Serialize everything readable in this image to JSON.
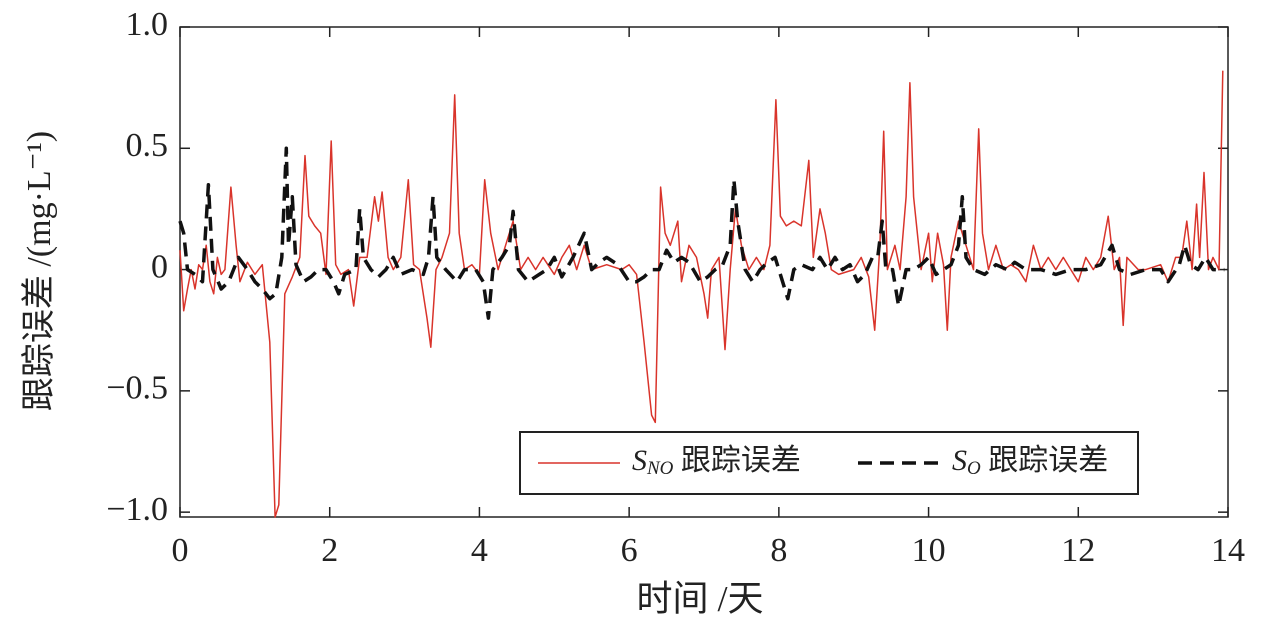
{
  "chart_data": {
    "type": "line",
    "ylabel": "跟踪误差 /(mg·L⁻¹)",
    "xlabel": "时间 /天",
    "xlim": [
      0,
      14
    ],
    "xticks": [
      0,
      2,
      4,
      6,
      8,
      10,
      12,
      14
    ],
    "ylim": [
      -1.02,
      1.0
    ],
    "yticks": [
      {
        "value": -1.0,
        "label": "−1.0"
      },
      {
        "value": -0.5,
        "label": "−0.5"
      },
      0,
      0.5,
      {
        "value": 1.0,
        "label": "1.0"
      }
    ],
    "legend": "lower right",
    "series": [
      {
        "name": "SNO 跟踪误差",
        "color": "#d9342b",
        "dash": false,
        "x": [
          0,
          0.05,
          0.1,
          0.15,
          0.2,
          0.25,
          0.3,
          0.35,
          0.4,
          0.45,
          0.5,
          0.55,
          0.6,
          0.68,
          0.75,
          0.8,
          0.9,
          1.0,
          1.1,
          1.2,
          1.27,
          1.32,
          1.4,
          1.5,
          1.6,
          1.67,
          1.72,
          1.8,
          1.88,
          1.95,
          2.02,
          2.08,
          2.15,
          2.25,
          2.32,
          2.4,
          2.5,
          2.6,
          2.65,
          2.7,
          2.78,
          2.85,
          2.95,
          3.05,
          3.12,
          3.2,
          3.3,
          3.35,
          3.42,
          3.5,
          3.6,
          3.67,
          3.73,
          3.8,
          3.9,
          4.0,
          4.07,
          4.15,
          4.25,
          4.35,
          4.45,
          4.55,
          4.65,
          4.75,
          4.85,
          5.0,
          5.1,
          5.2,
          5.3,
          5.4,
          5.5,
          5.7,
          5.9,
          6.0,
          6.1,
          6.2,
          6.3,
          6.35,
          6.42,
          6.48,
          6.55,
          6.65,
          6.7,
          6.8,
          6.9,
          7.0,
          7.05,
          7.1,
          7.2,
          7.28,
          7.35,
          7.42,
          7.5,
          7.6,
          7.7,
          7.8,
          7.88,
          7.96,
          8.02,
          8.1,
          8.2,
          8.3,
          8.4,
          8.46,
          8.55,
          8.62,
          8.7,
          8.8,
          9.0,
          9.1,
          9.2,
          9.28,
          9.35,
          9.4,
          9.45,
          9.55,
          9.62,
          9.7,
          9.75,
          9.8,
          9.9,
          10.0,
          10.05,
          10.12,
          10.2,
          10.25,
          10.3,
          10.4,
          10.5,
          10.6,
          10.67,
          10.72,
          10.8,
          10.9,
          11.0,
          11.1,
          11.2,
          11.3,
          11.4,
          11.5,
          11.6,
          11.7,
          11.8,
          11.9,
          12.0,
          12.1,
          12.2,
          12.3,
          12.4,
          12.48,
          12.55,
          12.6,
          12.65,
          12.8,
          12.9,
          13.1,
          13.2,
          13.3,
          13.38,
          13.45,
          13.52,
          13.58,
          13.62,
          13.68,
          13.74,
          13.8,
          13.88,
          13.93
        ],
        "values": [
          0.08,
          -0.17,
          -0.08,
          0.0,
          -0.08,
          0.02,
          0.0,
          0.1,
          -0.05,
          -0.1,
          0.05,
          -0.02,
          0.0,
          0.34,
          0.1,
          -0.05,
          0.03,
          -0.02,
          0.02,
          -0.3,
          -1.02,
          -0.97,
          -0.1,
          -0.03,
          0.05,
          0.47,
          0.22,
          0.18,
          0.15,
          -0.02,
          0.53,
          0.02,
          -0.02,
          0.0,
          -0.15,
          0.05,
          0.05,
          0.3,
          0.2,
          0.32,
          0.05,
          0.0,
          0.05,
          0.37,
          0.02,
          0.0,
          -0.2,
          -0.32,
          0.0,
          0.05,
          0.15,
          0.72,
          0.15,
          0.0,
          0.02,
          -0.02,
          0.37,
          0.15,
          0.0,
          0.1,
          0.2,
          0.0,
          0.05,
          0.0,
          0.05,
          -0.02,
          0.05,
          0.1,
          0.0,
          0.1,
          0.0,
          0.02,
          0.0,
          0.02,
          -0.02,
          -0.3,
          -0.6,
          -0.63,
          0.34,
          0.15,
          0.1,
          0.2,
          -0.05,
          0.1,
          0.05,
          -0.1,
          -0.2,
          0.0,
          0.05,
          -0.33,
          0.0,
          0.25,
          0.1,
          0.0,
          0.05,
          0.0,
          0.1,
          0.7,
          0.22,
          0.18,
          0.2,
          0.18,
          0.45,
          0.05,
          0.25,
          0.15,
          0.0,
          -0.02,
          0.0,
          0.05,
          -0.03,
          -0.25,
          0.1,
          0.57,
          0.0,
          0.1,
          0.0,
          0.3,
          0.77,
          0.3,
          0.0,
          0.15,
          -0.05,
          0.15,
          0.02,
          -0.25,
          0.05,
          0.2,
          0.1,
          0.0,
          0.58,
          0.15,
          0.0,
          0.1,
          0.0,
          0.02,
          0.0,
          -0.05,
          0.1,
          0.0,
          0.05,
          0.0,
          0.05,
          0.0,
          -0.05,
          0.05,
          0.0,
          0.05,
          0.22,
          0.0,
          0.05,
          -0.23,
          0.05,
          0.0,
          0.0,
          0.02,
          -0.05,
          0.05,
          0.05,
          0.2,
          0.0,
          0.27,
          0.05,
          0.4,
          0.0,
          0.05,
          0.0,
          0.82
        ]
      },
      {
        "name": "SO 跟踪误差",
        "color": "#111111",
        "dash": true,
        "x": [
          0,
          0.05,
          0.1,
          0.2,
          0.3,
          0.38,
          0.44,
          0.55,
          0.65,
          0.78,
          0.9,
          1.0,
          1.1,
          1.2,
          1.28,
          1.36,
          1.42,
          1.45,
          1.5,
          1.55,
          1.65,
          1.75,
          1.85,
          1.95,
          2.05,
          2.12,
          2.2,
          2.35,
          2.4,
          2.45,
          2.55,
          2.65,
          2.75,
          2.85,
          2.95,
          3.1,
          3.25,
          3.32,
          3.38,
          3.43,
          3.55,
          3.7,
          3.8,
          3.95,
          4.05,
          4.12,
          4.18,
          4.3,
          4.4,
          4.45,
          4.52,
          4.65,
          4.8,
          4.9,
          5.0,
          5.1,
          5.25,
          5.4,
          5.5,
          5.6,
          5.7,
          5.85,
          6.0,
          6.1,
          6.2,
          6.3,
          6.4,
          6.5,
          6.6,
          6.7,
          6.8,
          6.95,
          7.05,
          7.15,
          7.25,
          7.35,
          7.4,
          7.45,
          7.55,
          7.65,
          7.75,
          7.85,
          7.95,
          8.05,
          8.12,
          8.2,
          8.3,
          8.45,
          8.55,
          8.65,
          8.75,
          8.85,
          8.95,
          9.05,
          9.15,
          9.25,
          9.32,
          9.38,
          9.43,
          9.52,
          9.6,
          9.7,
          9.8,
          9.9,
          10.0,
          10.1,
          10.2,
          10.3,
          10.4,
          10.45,
          10.5,
          10.6,
          10.75,
          10.9,
          11.05,
          11.15,
          11.3,
          11.5,
          11.7,
          11.9,
          12.1,
          12.3,
          12.45,
          12.55,
          12.7,
          12.9,
          13.1,
          13.2,
          13.35,
          13.42,
          13.5,
          13.6,
          13.7,
          13.8,
          13.95
        ],
        "values": [
          0.2,
          0.15,
          0.0,
          -0.02,
          -0.05,
          0.35,
          0.0,
          -0.08,
          -0.05,
          0.05,
          0.0,
          -0.05,
          -0.08,
          -0.12,
          -0.1,
          0.05,
          0.5,
          0.1,
          0.3,
          0.02,
          -0.05,
          -0.03,
          0.0,
          0.0,
          -0.05,
          -0.1,
          -0.02,
          0.0,
          0.25,
          0.05,
          0.0,
          -0.03,
          0.0,
          0.05,
          -0.02,
          0.0,
          -0.02,
          0.05,
          0.3,
          0.05,
          0.0,
          -0.05,
          0.0,
          0.0,
          -0.05,
          -0.2,
          0.0,
          0.05,
          0.1,
          0.24,
          0.0,
          -0.05,
          -0.02,
          0.0,
          0.05,
          -0.03,
          0.05,
          0.15,
          0.0,
          0.03,
          0.05,
          0.02,
          -0.05,
          -0.05,
          -0.03,
          0.0,
          0.0,
          0.08,
          0.03,
          0.05,
          0.03,
          -0.05,
          -0.03,
          0.0,
          0.02,
          0.1,
          0.37,
          0.2,
          0.0,
          -0.05,
          0.0,
          0.03,
          0.05,
          -0.05,
          -0.12,
          0.0,
          0.02,
          0.0,
          0.05,
          0.0,
          0.05,
          0.0,
          0.02,
          -0.05,
          -0.02,
          0.05,
          0.05,
          0.2,
          0.0,
          0.0,
          -0.15,
          0.0,
          0.0,
          0.02,
          0.05,
          -0.02,
          0.0,
          0.02,
          0.1,
          0.3,
          0.05,
          0.0,
          -0.02,
          0.02,
          0.0,
          0.03,
          0.0,
          0.0,
          -0.02,
          0.0,
          0.0,
          0.02,
          0.1,
          0.0,
          -0.02,
          0.0,
          0.0,
          -0.05,
          0.02,
          0.1,
          0.02,
          0.0,
          0.05,
          0.0,
          0.0
        ]
      }
    ]
  }
}
